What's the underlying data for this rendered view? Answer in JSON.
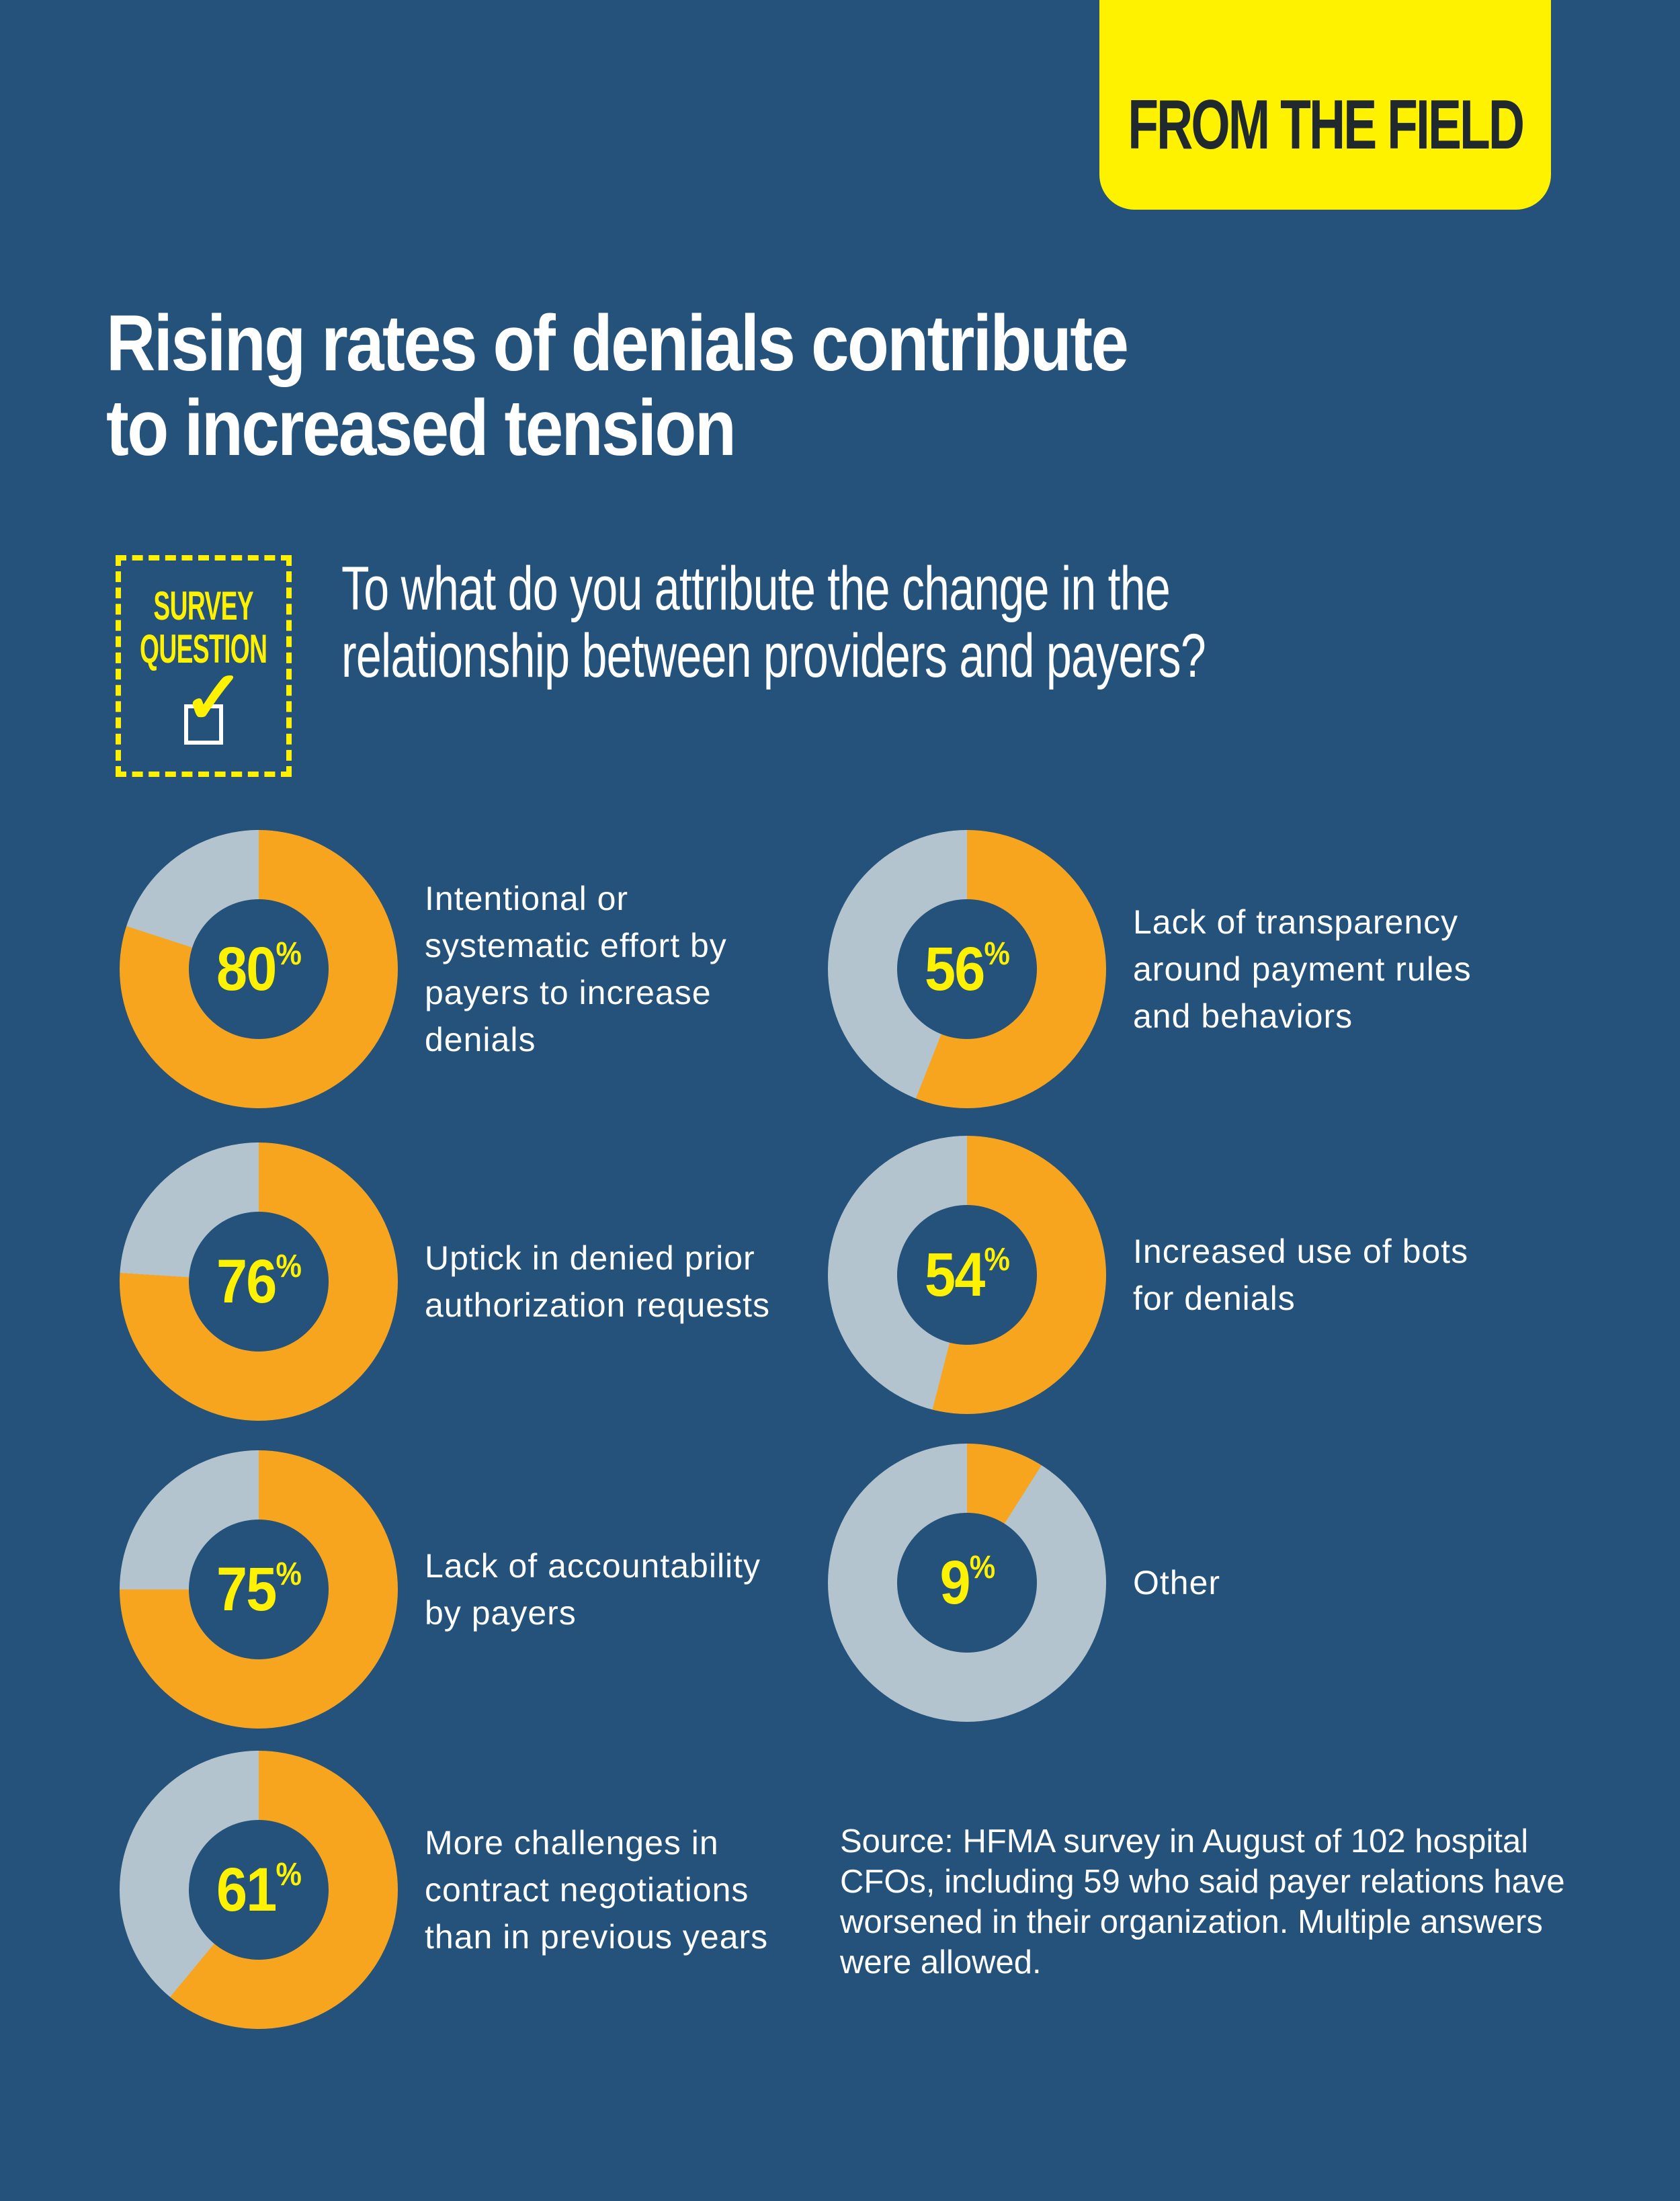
{
  "header": {
    "tab_label": "FROM THE FIELD"
  },
  "title": "Rising rates of denials contribute to increased tension",
  "survey_badge": {
    "line1": "SURVEY",
    "line2": "QUESTION",
    "icon": "checkbox-check-icon"
  },
  "question": "To what do you attribute the change in the relationship between providers and payers?",
  "colors": {
    "background": "#24527A",
    "value": "#F7A51F",
    "remainder": "#B4C4CE",
    "accent": "#FFF200",
    "tab_text": "#20292D"
  },
  "items": [
    {
      "value": 80,
      "display": "80",
      "label": "Intentional or systematic effort by payers to increase denials"
    },
    {
      "value": 76,
      "display": "76",
      "label": "Uptick in denied prior authorization requests"
    },
    {
      "value": 75,
      "display": "75",
      "label": "Lack of accountability by payers"
    },
    {
      "value": 61,
      "display": "61",
      "label": "More challenges in contract negotiations than in previous years"
    },
    {
      "value": 56,
      "display": "56",
      "label": "Lack of transparency around payment rules and behaviors"
    },
    {
      "value": 54,
      "display": "54",
      "label": "Increased use of bots for denials"
    },
    {
      "value": 9,
      "display": "9",
      "label": "Other"
    }
  ],
  "percent_sign": "%",
  "source": "Source: HFMA survey in August of 102 hospital CFOs, including 59 who said payer relations have worsened in their organization. Multiple answers were allowed.",
  "chart_data": {
    "type": "pie",
    "subtype": "donut",
    "title": "Rising rates of denials contribute to increased tension",
    "subtitle": "To what do you attribute the change in the relationship between providers and payers?",
    "categories": [
      "Intentional or systematic effort by payers to increase denials",
      "Uptick in denied prior authorization requests",
      "Lack of accountability by payers",
      "More challenges in contract negotiations than in previous years",
      "Lack of transparency around payment rules and behaviors",
      "Increased use of bots for denials",
      "Other"
    ],
    "values": [
      80,
      76,
      75,
      61,
      56,
      54,
      9
    ],
    "unit": "%",
    "note": "Multiple answers were allowed; each donut shows share of respondents (orange) vs remainder (gray)."
  }
}
